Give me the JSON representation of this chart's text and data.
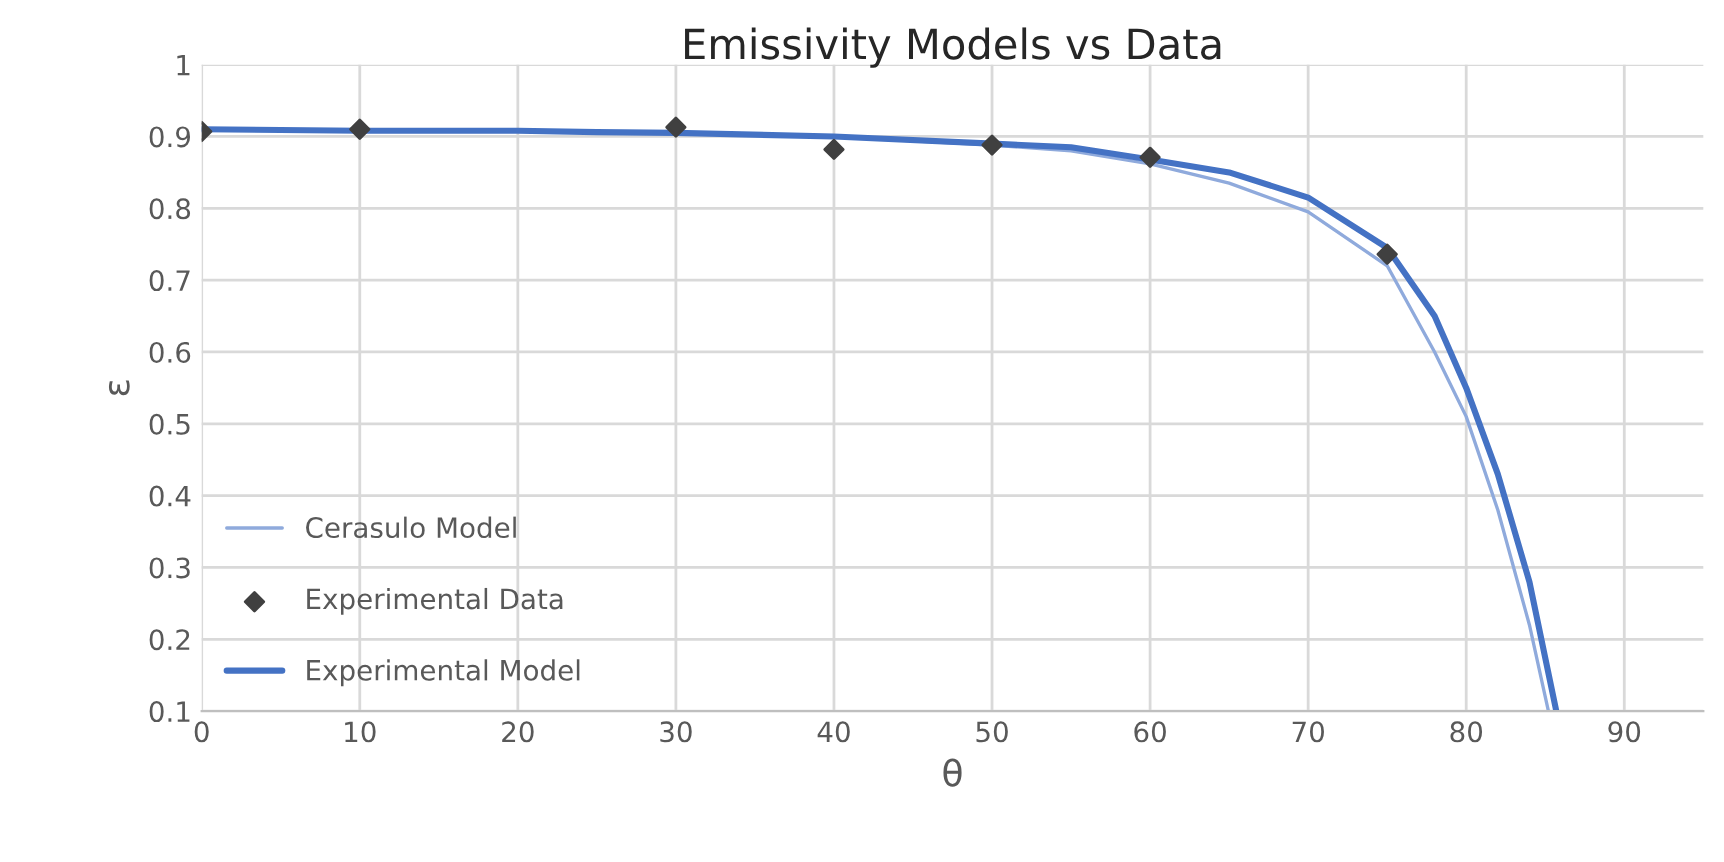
{
  "chart_data": {
    "type": "line",
    "title": "Emissivity Models vs Data",
    "xlabel": "θ",
    "ylabel": "ε",
    "xlim": [
      0,
      95
    ],
    "xticks": [
      0,
      10,
      20,
      30,
      40,
      50,
      60,
      70,
      80,
      90
    ],
    "ylim": [
      0.1,
      1
    ],
    "yticks": [
      0.1,
      0.2,
      0.3,
      0.4,
      0.5,
      0.6,
      0.7,
      0.8,
      0.9,
      1
    ],
    "grid": true,
    "legend": "bottom left",
    "series": [
      {
        "name": "Cerasulo Model",
        "color": "#8faadc",
        "x": [
          0,
          10,
          20,
          25,
          30,
          40,
          50,
          55,
          60,
          65,
          70,
          75,
          78,
          80,
          82,
          84,
          85.2
        ],
        "values": [
          0.91,
          0.908,
          0.908,
          0.906,
          0.905,
          0.9,
          0.888,
          0.88,
          0.862,
          0.835,
          0.795,
          0.72,
          0.6,
          0.51,
          0.38,
          0.22,
          0.1
        ]
      },
      {
        "name": "Experimental Data",
        "type": "scatter",
        "color": "#404040",
        "marker": "diamond",
        "x": [
          0,
          10,
          30,
          40,
          50,
          60,
          75
        ],
        "values": [
          0.907,
          0.91,
          0.913,
          0.882,
          0.888,
          0.871,
          0.736
        ]
      },
      {
        "name": "Experimental Model",
        "color": "#4472c4",
        "x": [
          0,
          10,
          20,
          25,
          30,
          40,
          50,
          55,
          60,
          65,
          70,
          75,
          78,
          80,
          82,
          84,
          85.7
        ],
        "values": [
          0.91,
          0.908,
          0.908,
          0.906,
          0.905,
          0.9,
          0.89,
          0.885,
          0.868,
          0.85,
          0.815,
          0.745,
          0.65,
          0.55,
          0.43,
          0.28,
          0.1
        ]
      }
    ]
  }
}
